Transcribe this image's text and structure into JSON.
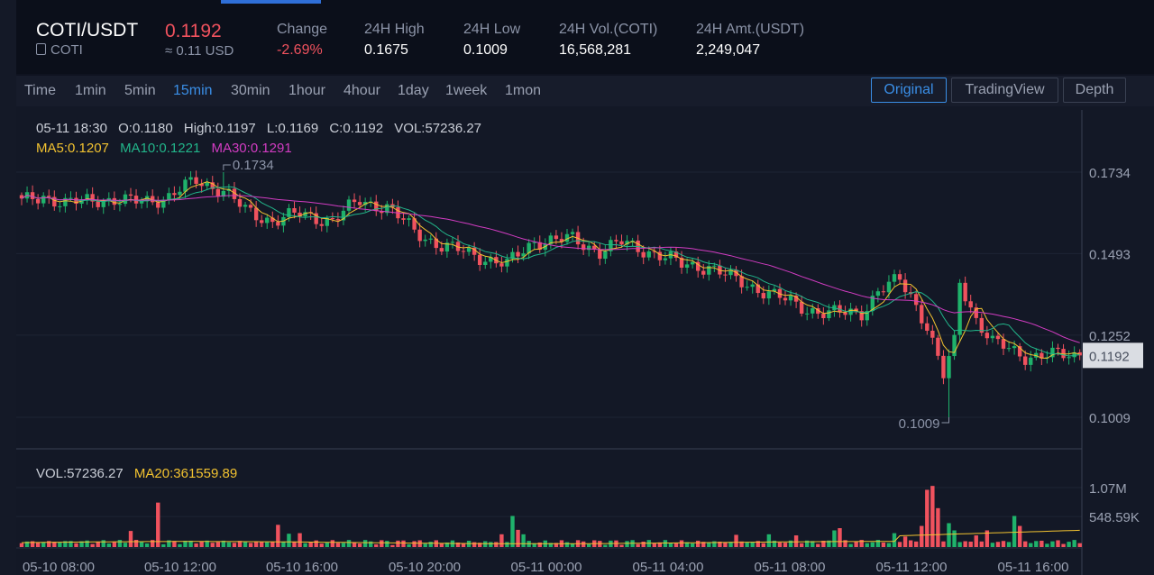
{
  "header": {
    "pair": "COTI/USDT",
    "base": "COTI",
    "price": "0.1192",
    "usd_equiv": "≈ 0.11 USD",
    "stats": [
      {
        "label": "Change",
        "value": "-2.69%",
        "red": true
      },
      {
        "label": "24H High",
        "value": "0.1675"
      },
      {
        "label": "24H Low",
        "value": "0.1009"
      },
      {
        "label": "24H Vol.(COTI)",
        "value": "16,568,281"
      },
      {
        "label": "24H Amt.(USDT)",
        "value": "2,249,047"
      }
    ]
  },
  "toolbar": {
    "timeframes": [
      "Time",
      "1min",
      "5min",
      "15min",
      "30min",
      "1hour",
      "4hour",
      "1day",
      "1week",
      "1mon"
    ],
    "active_timeframe": "15min",
    "views": [
      "Original",
      "TradingView",
      "Depth"
    ],
    "active_view": "Original"
  },
  "ohlc": {
    "date": "05-11 18:30",
    "open": "O:0.1180",
    "high": "High:0.1197",
    "low": "L:0.1169",
    "close": "C:0.1192",
    "vol": "VOL:57236.27"
  },
  "ma": {
    "ma5": "MA5:0.1207",
    "ma10": "MA10:0.1221",
    "ma30": "MA30:0.1291"
  },
  "volume_legend": {
    "vol": "VOL:57236.27",
    "ma20": "MA20:361559.89"
  },
  "colors": {
    "up": "#1fb26b",
    "down": "#f0525e",
    "ma5": "#f2c230",
    "ma10": "#22b58a",
    "ma30": "#d23cc2",
    "accent": "#3a8ee6"
  },
  "chart_data": {
    "type": "candlestick",
    "price_ticks": [
      0.1734,
      0.1493,
      0.1252,
      0.1009
    ],
    "price_tick_labels": [
      "0.1734",
      "0.1493",
      "0.1252",
      "0.1009"
    ],
    "current_price": 0.1192,
    "current_price_label": "0.1192",
    "max_marker": {
      "label": "0.1734",
      "value": 0.1734
    },
    "min_marker": {
      "label": "0.1009",
      "value": 0.1009
    },
    "volume_ticks": [
      1070000,
      548590
    ],
    "volume_tick_labels": [
      "1.07M",
      "548.59K"
    ],
    "x_tick_labels": [
      "05-10 08:00",
      "05-10 12:00",
      "05-10 16:00",
      "05-10 20:00",
      "05-11 00:00",
      "05-11 04:00",
      "05-11 08:00",
      "05-11 12:00",
      "05-11 16:00"
    ],
    "close_anchors": [
      [
        0,
        0.1645
      ],
      [
        4,
        0.1665
      ],
      [
        8,
        0.164
      ],
      [
        14,
        0.1655
      ],
      [
        20,
        0.1645
      ],
      [
        27,
        0.166
      ],
      [
        32,
        0.171
      ],
      [
        37,
        0.168
      ],
      [
        41,
        0.162
      ],
      [
        46,
        0.159
      ],
      [
        51,
        0.161
      ],
      [
        57,
        0.159
      ],
      [
        62,
        0.165
      ],
      [
        67,
        0.163
      ],
      [
        72,
        0.156
      ],
      [
        77,
        0.1515
      ],
      [
        83,
        0.149
      ],
      [
        89,
        0.146
      ],
      [
        94,
        0.153
      ],
      [
        101,
        0.1535
      ],
      [
        106,
        0.15
      ],
      [
        110,
        0.1525
      ],
      [
        116,
        0.1495
      ],
      [
        121,
        0.146
      ],
      [
        126,
        0.1455
      ],
      [
        130,
        0.142
      ],
      [
        135,
        0.139
      ],
      [
        140,
        0.1355
      ],
      [
        144,
        0.133
      ],
      [
        148,
        0.1315
      ],
      [
        154,
        0.132
      ],
      [
        157,
        0.138
      ],
      [
        161,
        0.1415
      ],
      [
        163,
        0.137
      ],
      [
        166,
        0.128
      ],
      [
        169,
        0.113
      ],
      [
        171,
        0.123
      ],
      [
        172,
        0.141
      ],
      [
        175,
        0.13
      ],
      [
        178,
        0.123
      ],
      [
        181,
        0.121
      ],
      [
        184,
        0.119
      ],
      [
        187,
        0.1192
      ]
    ],
    "volume_spikes": [
      {
        "i": 47,
        "v": 400000
      },
      {
        "i": 90,
        "v": 560000
      },
      {
        "i": 91,
        "v": 310000
      },
      {
        "i": 92,
        "v": 230000
      },
      {
        "i": 160,
        "v": 250000
      },
      {
        "i": 162,
        "v": 190000
      },
      {
        "i": 165,
        "v": 380000
      },
      {
        "i": 166,
        "v": 1030000
      },
      {
        "i": 167,
        "v": 1100000
      },
      {
        "i": 168,
        "v": 700000
      },
      {
        "i": 170,
        "v": 430000
      },
      {
        "i": 171,
        "v": 300000
      },
      {
        "i": 131,
        "v": 220000
      },
      {
        "i": 137,
        "v": 230000
      },
      {
        "i": 142,
        "v": 210000
      },
      {
        "i": 149,
        "v": 300000
      },
      {
        "i": 150,
        "v": 340000
      },
      {
        "i": 182,
        "v": 560000
      },
      {
        "i": 183,
        "v": 380000
      },
      {
        "i": 177,
        "v": 300000
      },
      {
        "i": 25,
        "v": 800000
      },
      {
        "i": 20,
        "v": 290000
      },
      {
        "i": 49,
        "v": 240000
      },
      {
        "i": 51,
        "v": 250000
      },
      {
        "i": 88,
        "v": 230000
      },
      {
        "i": 175,
        "v": 210000
      }
    ]
  }
}
